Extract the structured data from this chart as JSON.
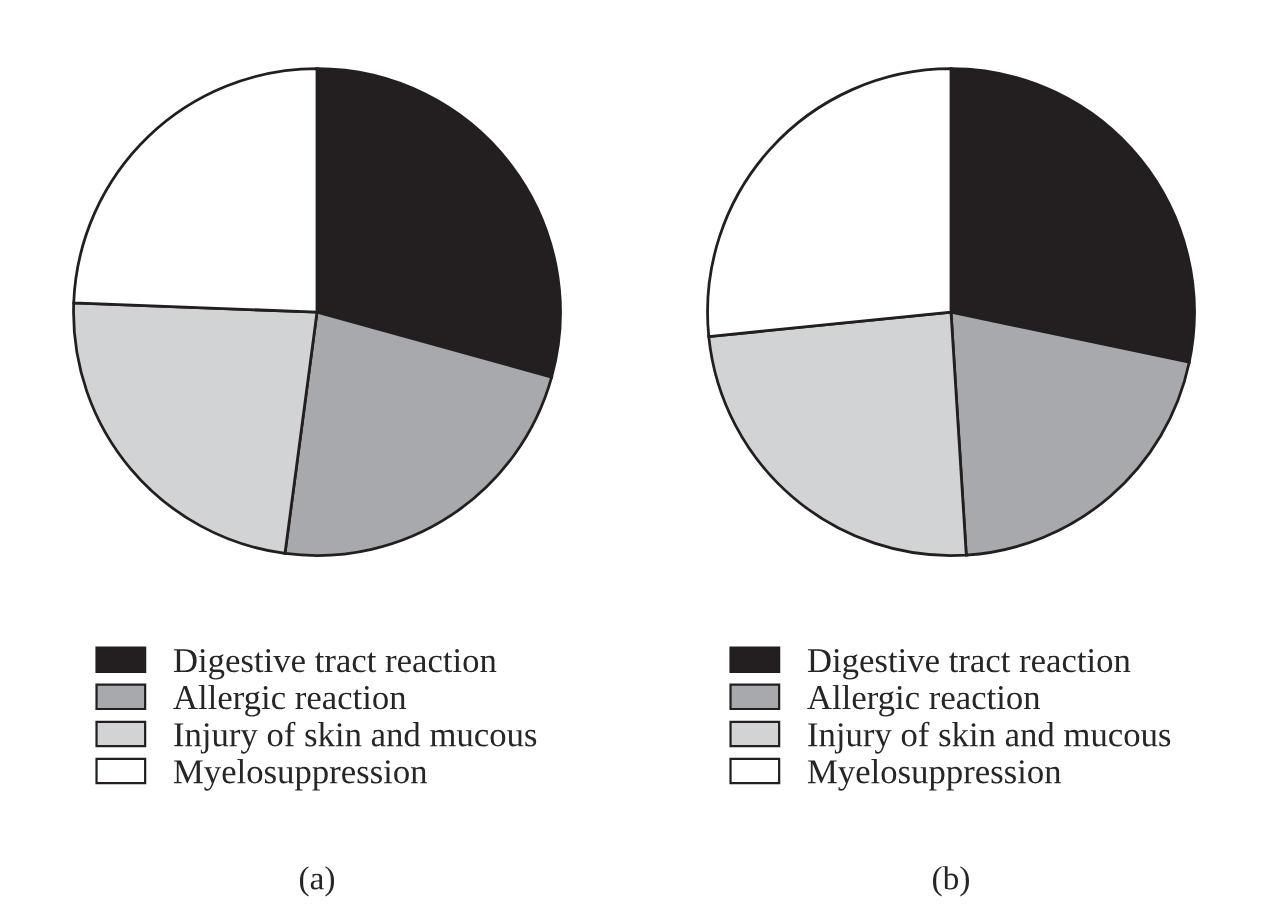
{
  "chart_data": [
    {
      "type": "pie",
      "title": "(a)",
      "categories": [
        "Digestive tract reaction",
        "Allergic reaction",
        "Injury of skin and mucous",
        "Myelosuppression"
      ],
      "values": [
        29.3,
        22.8,
        23.5,
        24.4
      ],
      "colors": [
        "#231f20",
        "#a7a9ac",
        "#d1d3d4",
        "#ffffff"
      ],
      "legend": "bottom"
    },
    {
      "type": "pie",
      "title": "(b)",
      "categories": [
        "Digestive tract reaction",
        "Allergic reaction",
        "Injury of skin and mucous",
        "Myelosuppression"
      ],
      "values": [
        28.3,
        20.7,
        24.4,
        26.6
      ],
      "colors": [
        "#231f20",
        "#a7a9ac",
        "#d1d3d4",
        "#ffffff"
      ],
      "legend": "bottom"
    }
  ]
}
